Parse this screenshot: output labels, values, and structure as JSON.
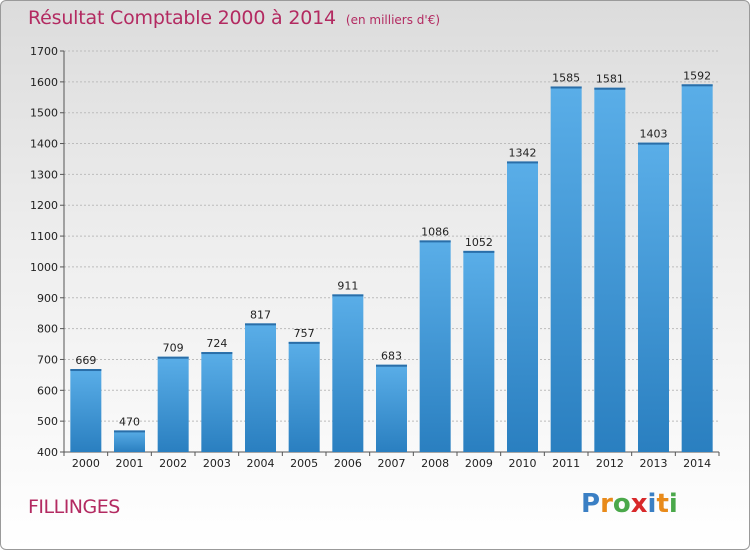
{
  "header": {
    "title": "Résultat Comptable 2000 à 2014",
    "unit": "(en milliers d'€)"
  },
  "footer": {
    "place": "FILLINGES",
    "logo_letters": [
      {
        "char": "P",
        "color": "#3a7fc4"
      },
      {
        "char": "r",
        "color": "#e88a1a"
      },
      {
        "char": "o",
        "color": "#4aa84a"
      },
      {
        "char": "x",
        "color": "#d8282a"
      },
      {
        "char": "i",
        "color": "#3a7fc4"
      },
      {
        "char": "t",
        "color": "#e88a1a"
      },
      {
        "char": "i",
        "color": "#4aa84a"
      }
    ]
  },
  "colors": {
    "title": "#b32a61",
    "bar_light": "#5aaee8",
    "bar_dark": "#2a7fc0"
  },
  "chart_data": {
    "type": "bar",
    "title": "Résultat Comptable 2000 à 2014",
    "categories": [
      "2000",
      "2001",
      "2002",
      "2003",
      "2004",
      "2005",
      "2006",
      "2007",
      "2008",
      "2009",
      "2010",
      "2011",
      "2012",
      "2013",
      "2014"
    ],
    "values": [
      669,
      470,
      709,
      724,
      817,
      757,
      911,
      683,
      1086,
      1052,
      1342,
      1585,
      1581,
      1403,
      1592
    ],
    "ylim": [
      400,
      1700
    ],
    "yticks": [
      400,
      500,
      600,
      700,
      800,
      900,
      1000,
      1100,
      1200,
      1300,
      1400,
      1500,
      1600,
      1700
    ],
    "grid": "horizontal dashed",
    "data_labels": true
  }
}
